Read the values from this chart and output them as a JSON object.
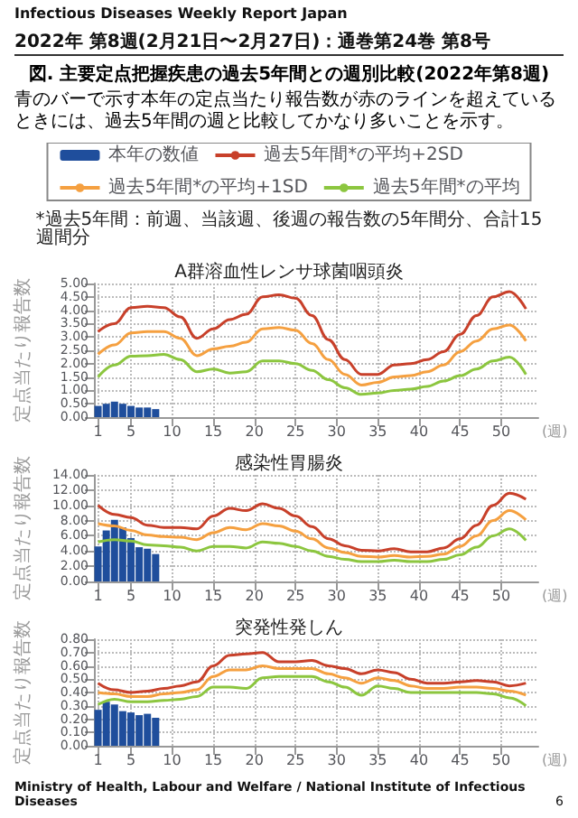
{
  "chart_data": [
    {
      "type": "other",
      "title": "図. 主要定点把握疾患の過去5年間との週別比較(2022年第8週)",
      "subtitle": "青のバーで示す本年の定点当たり報告数が赤のラインを超えているときには、過去5年間の週と比較してかなり多いことを示す。",
      "annotations": [
        "Infectious Diseases Weekly Report Japan",
        "2022年 第8週(2月21日〜2月27日)：通巻第24巻 第8号"
      ]
    },
    {
      "type": "line",
      "title": "A群溶血性レンサ球菌咽頭炎",
      "ylabel": "定点当たり報告数",
      "xlabel": "(週)",
      "annotations": [
        "*過去5年間：前週、当該週、後週の報告数の5年間分、合計15週間分"
      ],
      "legend": "top",
      "grid": true,
      "x": [
        1,
        3,
        5,
        7,
        9,
        11,
        13,
        15,
        17,
        19,
        21,
        23,
        25,
        27,
        29,
        31,
        33,
        35,
        37,
        39,
        41,
        43,
        45,
        47,
        49,
        51,
        53
      ],
      "xlim": [
        0.5,
        54.5
      ],
      "xticks": [
        1,
        5,
        10,
        15,
        20,
        25,
        30,
        35,
        40,
        45,
        50
      ],
      "ylim": [
        0,
        5
      ],
      "yticks": [
        {
          "value": 0,
          "label": "0.00"
        },
        {
          "value": 0.5,
          "label": "0.50"
        },
        {
          "value": 1,
          "label": "1.00"
        },
        {
          "value": 1.5,
          "label": "1.50"
        },
        {
          "value": 2,
          "label": "2.00"
        },
        {
          "value": 2.5,
          "label": "2.50"
        },
        {
          "value": 3,
          "label": "3.00"
        },
        {
          "value": 3.5,
          "label": "3.50"
        },
        {
          "value": 4,
          "label": "4.00"
        },
        {
          "value": 4.5,
          "label": "4.50"
        },
        {
          "value": 5,
          "label": "5.00"
        }
      ],
      "series": [
        {
          "type": "bar",
          "name": "本年の数値",
          "color": "#1f4e9c",
          "x": [
            1,
            2,
            3,
            4,
            5,
            6,
            7,
            8
          ],
          "values": [
            0.42,
            0.5,
            0.58,
            0.5,
            0.42,
            0.36,
            0.36,
            0.3
          ]
        },
        {
          "name": "過去5年間*の平均+2SD",
          "color": "#c8402a",
          "values": [
            3.2,
            3.5,
            4.1,
            4.15,
            4.1,
            3.75,
            2.95,
            3.3,
            3.65,
            3.85,
            4.5,
            4.58,
            4.45,
            3.8,
            2.9,
            2.15,
            1.6,
            1.6,
            1.95,
            2.0,
            2.15,
            2.45,
            3.1,
            3.8,
            4.5,
            4.7,
            4.05
          ]
        },
        {
          "name": "過去5年間*の平均+1SD",
          "color": "#f5a040",
          "values": [
            2.35,
            2.7,
            3.15,
            3.2,
            3.2,
            2.95,
            2.3,
            2.55,
            2.65,
            2.8,
            3.3,
            3.35,
            3.25,
            2.75,
            2.15,
            1.6,
            1.2,
            1.3,
            1.5,
            1.55,
            1.7,
            1.95,
            2.45,
            2.85,
            3.3,
            3.45,
            2.85
          ]
        },
        {
          "name": "過去5年間*の平均",
          "color": "#8cc63f",
          "values": [
            1.5,
            1.95,
            2.28,
            2.3,
            2.35,
            2.15,
            1.7,
            1.8,
            1.65,
            1.7,
            2.1,
            2.1,
            2.0,
            1.75,
            1.4,
            1.1,
            0.85,
            0.9,
            1.0,
            1.05,
            1.15,
            1.35,
            1.55,
            1.8,
            2.1,
            2.25,
            1.6
          ]
        }
      ]
    },
    {
      "type": "line",
      "title": "感染性胃腸炎",
      "ylabel": "定点当たり報告数",
      "xlabel": "(週)",
      "grid": true,
      "x": [
        1,
        3,
        5,
        7,
        9,
        11,
        13,
        15,
        17,
        19,
        21,
        23,
        25,
        27,
        29,
        31,
        33,
        35,
        37,
        39,
        41,
        43,
        45,
        47,
        49,
        51,
        53
      ],
      "xlim": [
        0.5,
        54.5
      ],
      "xticks": [
        1,
        5,
        10,
        15,
        20,
        25,
        30,
        35,
        40,
        45,
        50
      ],
      "ylim": [
        0,
        14
      ],
      "yticks": [
        {
          "value": 0,
          "label": "0.00"
        },
        {
          "value": 2,
          "label": "2.00"
        },
        {
          "value": 4,
          "label": "4.00"
        },
        {
          "value": 6,
          "label": "6.00"
        },
        {
          "value": 8,
          "label": "8.00"
        },
        {
          "value": 10,
          "label": "10.00"
        },
        {
          "value": 12,
          "label": "12.00"
        },
        {
          "value": 14,
          "label": "14.00"
        }
      ],
      "series": [
        {
          "type": "bar",
          "color": "#1f4e9c",
          "x": [
            1,
            2,
            3,
            4,
            5,
            6,
            7,
            8
          ],
          "values": [
            4.6,
            6.7,
            8.1,
            7.1,
            5.7,
            4.5,
            4.3,
            3.6
          ]
        },
        {
          "color": "#c8402a",
          "values": [
            10.0,
            8.8,
            8.4,
            7.4,
            7.1,
            7.1,
            6.9,
            8.6,
            9.6,
            9.3,
            10.2,
            9.6,
            8.6,
            7.2,
            5.6,
            4.7,
            4.1,
            4.0,
            4.3,
            3.9,
            3.9,
            4.4,
            5.6,
            7.4,
            10.0,
            11.6,
            10.8
          ]
        },
        {
          "color": "#f5a040",
          "values": [
            7.6,
            7.3,
            6.7,
            6.1,
            5.9,
            5.8,
            5.5,
            6.4,
            7.1,
            6.8,
            7.6,
            7.3,
            6.6,
            5.6,
            4.4,
            3.8,
            3.3,
            3.2,
            3.4,
            3.2,
            3.3,
            3.6,
            4.6,
            6.0,
            8.0,
            9.3,
            8.1
          ]
        },
        {
          "color": "#8cc63f",
          "values": [
            5.2,
            5.5,
            5.3,
            4.8,
            4.7,
            4.5,
            4.0,
            4.6,
            4.6,
            4.4,
            5.2,
            5.0,
            4.6,
            4.0,
            3.3,
            2.9,
            2.6,
            2.6,
            2.8,
            2.6,
            2.6,
            2.9,
            3.5,
            4.5,
            6.0,
            6.9,
            5.4
          ]
        }
      ]
    },
    {
      "type": "line",
      "title": "突発性発しん",
      "ylabel": "定点当たり報告数",
      "xlabel": "(週)",
      "grid": true,
      "x": [
        1,
        3,
        5,
        7,
        9,
        11,
        13,
        15,
        17,
        19,
        21,
        23,
        25,
        27,
        29,
        31,
        33,
        35,
        37,
        39,
        41,
        43,
        45,
        47,
        49,
        51,
        53
      ],
      "xlim": [
        0.5,
        54.5
      ],
      "xticks": [
        1,
        5,
        10,
        15,
        20,
        25,
        30,
        35,
        40,
        45,
        50
      ],
      "ylim": [
        0,
        0.8
      ],
      "yticks": [
        {
          "value": 0,
          "label": "0.00"
        },
        {
          "value": 0.1,
          "label": "0.10"
        },
        {
          "value": 0.2,
          "label": "0.20"
        },
        {
          "value": 0.3,
          "label": "0.30"
        },
        {
          "value": 0.4,
          "label": "0.40"
        },
        {
          "value": 0.5,
          "label": "0.50"
        },
        {
          "value": 0.6,
          "label": "0.60"
        },
        {
          "value": 0.7,
          "label": "0.70"
        },
        {
          "value": 0.8,
          "label": "0.80"
        }
      ],
      "series": [
        {
          "type": "bar",
          "color": "#1f4e9c",
          "x": [
            1,
            2,
            3,
            4,
            5,
            6,
            7,
            8
          ],
          "values": [
            0.27,
            0.33,
            0.31,
            0.26,
            0.25,
            0.23,
            0.24,
            0.21
          ]
        },
        {
          "color": "#c8402a",
          "values": [
            0.47,
            0.42,
            0.4,
            0.41,
            0.43,
            0.45,
            0.48,
            0.6,
            0.68,
            0.69,
            0.7,
            0.63,
            0.63,
            0.64,
            0.6,
            0.58,
            0.54,
            0.57,
            0.55,
            0.5,
            0.47,
            0.47,
            0.48,
            0.49,
            0.48,
            0.45,
            0.47
          ]
        },
        {
          "color": "#f5a040",
          "values": [
            0.4,
            0.39,
            0.37,
            0.37,
            0.39,
            0.4,
            0.42,
            0.52,
            0.57,
            0.57,
            0.6,
            0.58,
            0.58,
            0.58,
            0.54,
            0.51,
            0.47,
            0.51,
            0.49,
            0.45,
            0.43,
            0.43,
            0.44,
            0.44,
            0.43,
            0.41,
            0.38
          ]
        },
        {
          "color": "#8cc63f",
          "values": [
            0.31,
            0.35,
            0.33,
            0.33,
            0.34,
            0.35,
            0.37,
            0.44,
            0.44,
            0.43,
            0.51,
            0.52,
            0.52,
            0.52,
            0.48,
            0.44,
            0.38,
            0.45,
            0.43,
            0.4,
            0.4,
            0.4,
            0.4,
            0.4,
            0.39,
            0.36,
            0.3
          ]
        }
      ]
    },
    {
      "type": "other",
      "annotations": [
        "Ministry of Health, Labour and Welfare / National Institute of Infectious Diseases",
        "6"
      ]
    }
  ]
}
